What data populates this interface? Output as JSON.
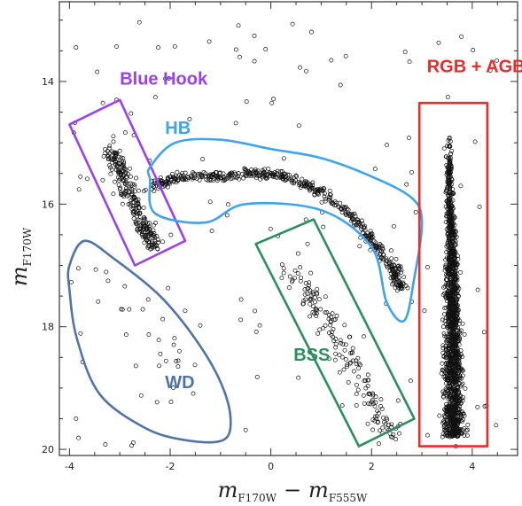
{
  "chart_data": {
    "type": "scatter",
    "title": "",
    "xlabel": {
      "main": "m",
      "sub1": "F170W",
      "minus": "−",
      "main2": "m",
      "sub2": "F555W"
    },
    "ylabel": {
      "main": "m",
      "sub": "F170W"
    },
    "xlim": [
      -4.2,
      4.9
    ],
    "ylim": [
      20.1,
      12.7
    ],
    "y_inverted": true,
    "x_ticks": [
      -4,
      -2,
      0,
      2,
      4
    ],
    "y_ticks": [
      14,
      16,
      18,
      20
    ],
    "x_tick_labels": [
      "-4",
      "-2",
      "0",
      "2",
      "4"
    ],
    "y_tick_labels": [
      "14",
      "16",
      "18",
      "20"
    ],
    "grid": false,
    "marker": "open-circle",
    "regions": [
      {
        "name": "Blue Hook",
        "color": "#9b40f0",
        "shape": "rotated-box",
        "outline": [
          [
            -4.0,
            14.7
          ],
          [
            -3.0,
            14.3
          ],
          [
            -1.7,
            16.6
          ],
          [
            -2.7,
            17.0
          ]
        ],
        "label_pos": [
          -3.0,
          14.05
        ]
      },
      {
        "name": "HB",
        "color": "#3ea4ec",
        "shape": "closed-curve",
        "outline": [
          [
            -2.4,
            15.4
          ],
          [
            -1.9,
            15.0
          ],
          [
            -1.0,
            14.95
          ],
          [
            0.0,
            15.1
          ],
          [
            1.0,
            15.25
          ],
          [
            2.0,
            15.55
          ],
          [
            2.8,
            15.9
          ],
          [
            3.0,
            16.3
          ],
          [
            2.85,
            17.2
          ],
          [
            2.65,
            17.9
          ],
          [
            2.3,
            17.6
          ],
          [
            2.0,
            16.7
          ],
          [
            1.0,
            16.1
          ],
          [
            -0.5,
            16.0
          ],
          [
            -1.3,
            16.3
          ],
          [
            -2.3,
            16.15
          ],
          [
            -2.4,
            15.6
          ]
        ],
        "label_pos": [
          -2.1,
          14.85
        ]
      },
      {
        "name": "BSS",
        "color": "#2a8f5c",
        "shape": "rotated-box",
        "outline": [
          [
            -0.3,
            16.65
          ],
          [
            0.85,
            16.25
          ],
          [
            2.85,
            19.5
          ],
          [
            1.75,
            19.95
          ]
        ],
        "label_pos": [
          0.45,
          18.55
        ]
      },
      {
        "name": "WD",
        "color": "#4f74a5",
        "shape": "closed-curve",
        "outline": [
          [
            -4.0,
            17.0
          ],
          [
            -3.7,
            16.6
          ],
          [
            -3.1,
            16.9
          ],
          [
            -2.2,
            17.5
          ],
          [
            -1.5,
            18.2
          ],
          [
            -1.0,
            18.9
          ],
          [
            -0.8,
            19.5
          ],
          [
            -0.95,
            19.85
          ],
          [
            -1.7,
            19.85
          ],
          [
            -2.5,
            19.65
          ],
          [
            -3.4,
            19.1
          ],
          [
            -3.85,
            18.2
          ],
          [
            -4.0,
            17.4
          ]
        ],
        "label_pos": [
          -2.1,
          19.0
        ]
      },
      {
        "name": "RGB + AGB",
        "color": "#ee2b2b",
        "shape": "box",
        "outline": [
          [
            2.95,
            14.35
          ],
          [
            4.3,
            14.35
          ],
          [
            4.3,
            19.95
          ],
          [
            2.95,
            19.95
          ]
        ],
        "label_pos": [
          3.1,
          13.85
        ]
      }
    ],
    "sequences": [
      {
        "name": "horizontal branch",
        "points": [
          [
            -2.4,
            15.75
          ],
          [
            -1.8,
            15.55
          ],
          [
            -1.0,
            15.55
          ],
          [
            -0.3,
            15.5
          ],
          [
            0.3,
            15.55
          ],
          [
            1.0,
            15.8
          ],
          [
            1.6,
            16.2
          ],
          [
            2.0,
            16.6
          ],
          [
            2.4,
            17.0
          ],
          [
            2.6,
            17.4
          ]
        ],
        "count": 520,
        "spread": [
          0.18,
          0.12
        ]
      },
      {
        "name": "blue hook",
        "points": [
          [
            -3.2,
            15.1
          ],
          [
            -2.9,
            15.6
          ],
          [
            -2.6,
            16.2
          ],
          [
            -2.3,
            16.7
          ]
        ],
        "count": 260,
        "spread": [
          0.22,
          0.25
        ]
      },
      {
        "name": "red giant branch",
        "points": [
          [
            3.55,
            14.9
          ],
          [
            3.55,
            15.8
          ],
          [
            3.6,
            16.8
          ],
          [
            3.6,
            17.8
          ],
          [
            3.62,
            18.8
          ],
          [
            3.65,
            19.8
          ]
        ],
        "count": 1500,
        "spread": [
          0.12,
          0.0
        ]
      },
      {
        "name": "blue stragglers",
        "points": [
          [
            0.3,
            16.9
          ],
          [
            0.9,
            17.6
          ],
          [
            1.5,
            18.4
          ],
          [
            2.0,
            19.2
          ],
          [
            2.4,
            19.8
          ]
        ],
        "count": 170,
        "spread": [
          0.38,
          0.2
        ]
      },
      {
        "name": "white dwarfs",
        "points": [
          [
            -3.4,
            17.0
          ],
          [
            -2.5,
            18.0
          ],
          [
            -1.8,
            18.8
          ]
        ],
        "count": 14,
        "spread": [
          0.4,
          0.4
        ]
      },
      {
        "name": "field",
        "points": [
          [
            -4.0,
            12.9
          ],
          [
            4.5,
            20.0
          ]
        ],
        "count": 140,
        "spread": [
          0.0,
          0.0
        ]
      }
    ]
  }
}
